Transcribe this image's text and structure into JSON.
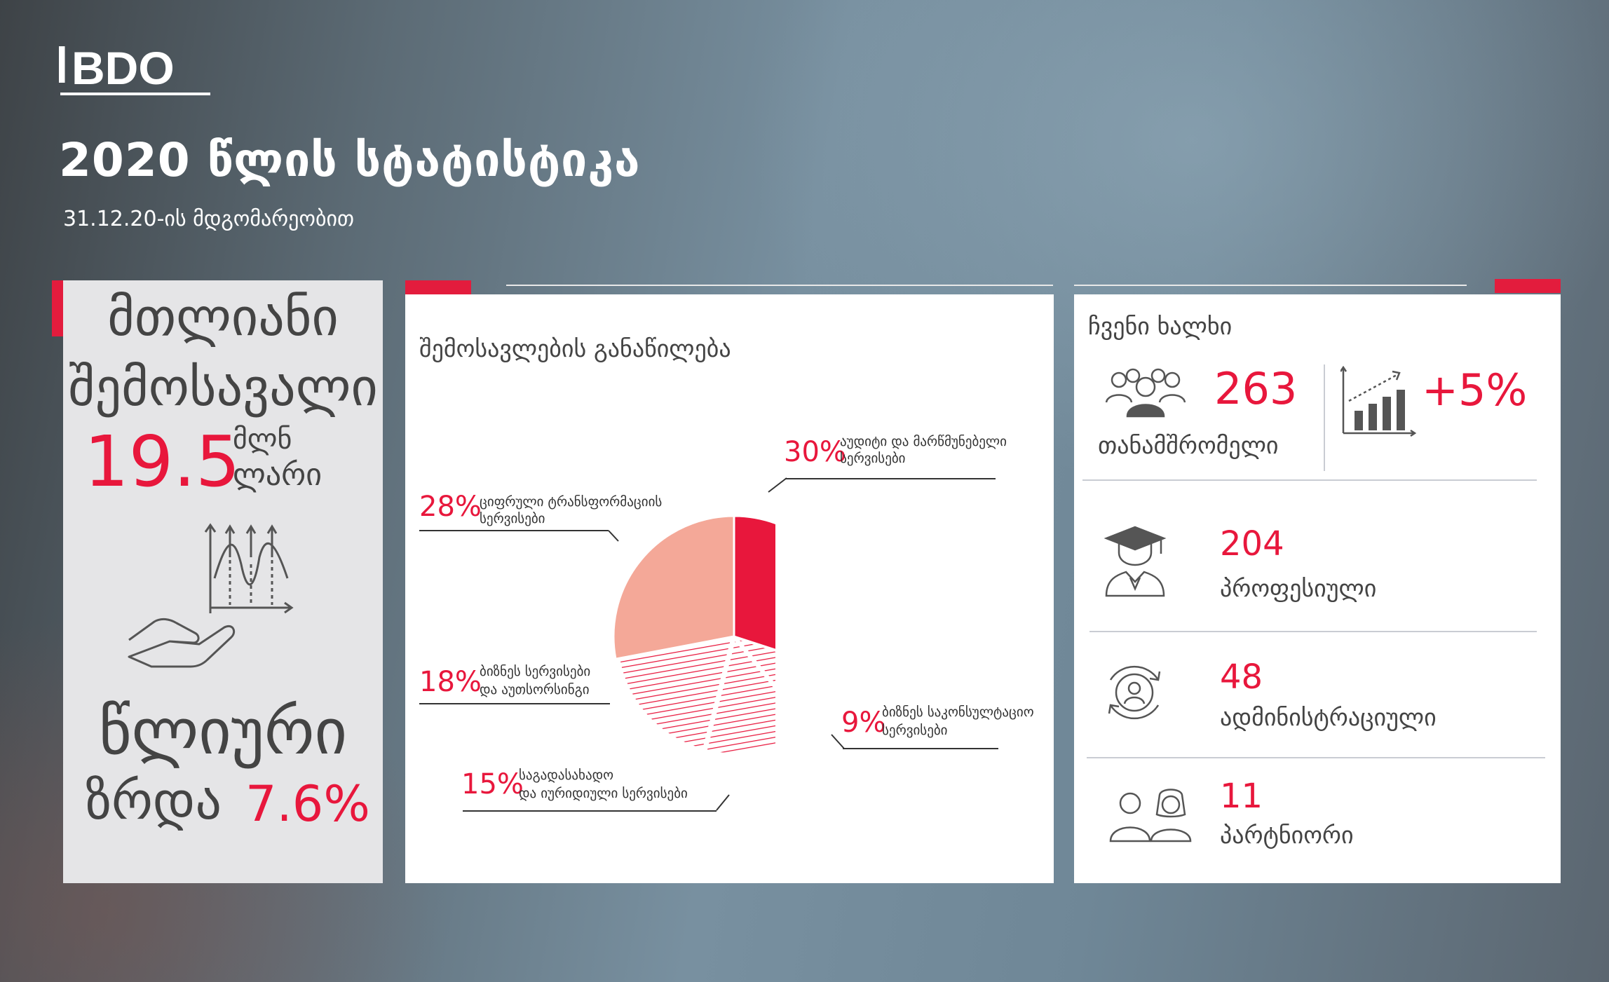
{
  "brand": {
    "logo_text": "BDO"
  },
  "header": {
    "title": "2020 წლის სტატისტიკა",
    "subtitle": "31.12.20-ის მდგომარეობით"
  },
  "revenue_card": {
    "line1": "მთლიანი",
    "line2": "შემოსავალი",
    "amount": "19.5",
    "unit_line1": "მლნ",
    "unit_line2": "ლარი",
    "growth_line1": "წლიური",
    "growth_line2": "ზრდა",
    "growth_value": "7.6%"
  },
  "distribution": {
    "title": "შემოსავლების განაწილება",
    "labels": [
      {
        "pct": "30%",
        "text1": "აუდიტი და მარწმუნებელი",
        "text2": "სერვისები"
      },
      {
        "pct": "28%",
        "text1": "ციფრული ტრანსფორმაციის",
        "text2": "სერვისები"
      },
      {
        "pct": "18%",
        "text1": "ბიზნეს სერვისები",
        "text2": "და აუთსორსინგი"
      },
      {
        "pct": "15%",
        "text1": "საგადასახადო",
        "text2": "და იურიდიული სერვისები"
      },
      {
        "pct": "9%",
        "text1": "ბიზნეს საკონსულტაციო",
        "text2": "სერვისები"
      }
    ]
  },
  "chart_data": {
    "type": "pie",
    "title": "შემოსავლების განაწილება",
    "categories": [
      "აუდიტი და მარწმუნებელი სერვისები",
      "ბიზნეს საკონსულტაციო სერვისები",
      "საგადასახადო და იურიდიული სერვისები",
      "ბიზნეს სერვისები და აუთსორსინგი",
      "ციფრული ტრანსფორმაციის სერვისები"
    ],
    "values": [
      30,
      9,
      15,
      18,
      28
    ],
    "styles": [
      "solid",
      "hatched",
      "hatched",
      "hatched",
      "solid"
    ],
    "colors": [
      "#e8173c",
      "#e8173c",
      "#e8173c",
      "#e8173c",
      "#f4a898"
    ]
  },
  "people": {
    "title": "ჩვენი ხალხი",
    "employees_count": "263",
    "employees_label": "თანამშრომელი",
    "growth": "+5%",
    "professional_count": "204",
    "professional_label": "პროფესიული",
    "admin_count": "48",
    "admin_label": "ადმინისტრაციული",
    "partner_count": "11",
    "partner_label": "პარტნიორი"
  },
  "colors": {
    "accent": "#e8173c",
    "accent_light": "#f4a898",
    "text": "#444444"
  },
  "icons": [
    "chart-growth-icon",
    "hand-icon",
    "group-icon",
    "growth-bar-icon",
    "graduate-icon",
    "admin-cycle-icon",
    "partners-icon"
  ]
}
